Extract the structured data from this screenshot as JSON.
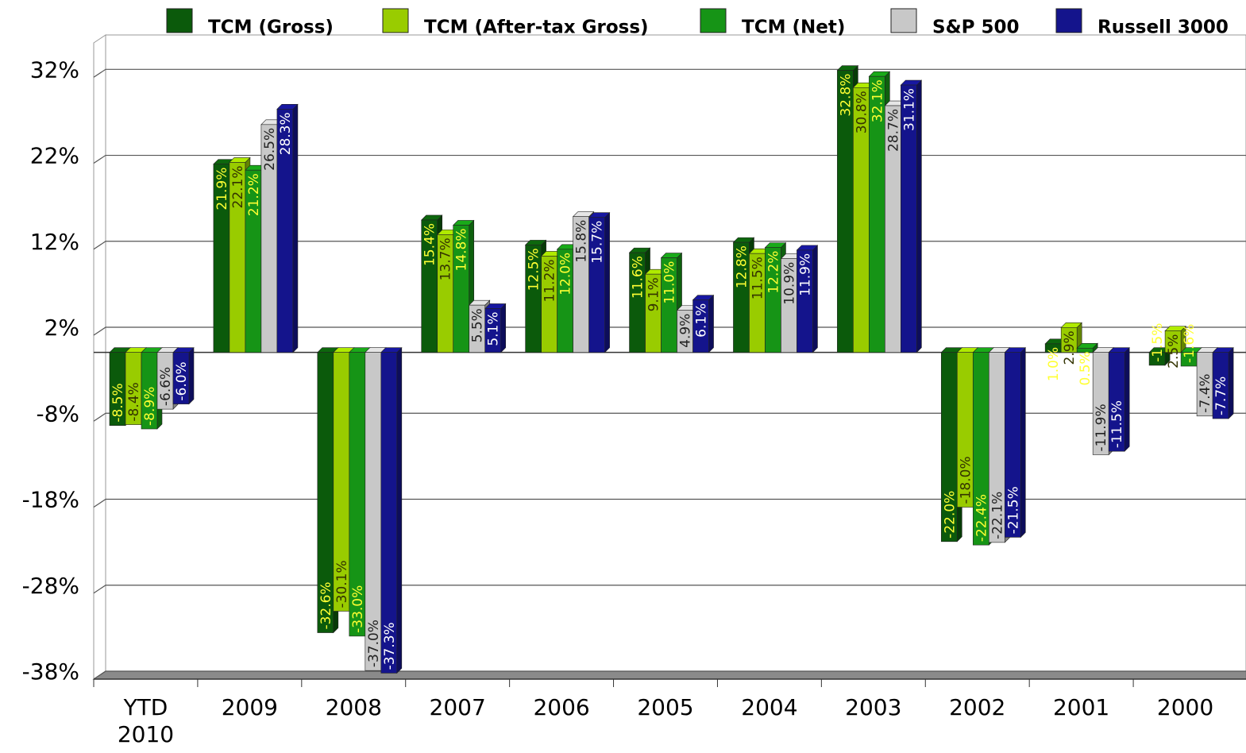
{
  "chart_data": {
    "type": "bar3d",
    "categories": [
      "YTD 2010",
      "2009",
      "2008",
      "2007",
      "2006",
      "2005",
      "2004",
      "2003",
      "2002",
      "2001",
      "2000"
    ],
    "series": [
      {
        "name": "TCM (Gross)",
        "color": "#0b5a0b",
        "label_color": "#ffff33",
        "values": [
          -8.5,
          21.9,
          -32.6,
          15.4,
          12.5,
          11.6,
          12.8,
          32.8,
          -22.0,
          1.0,
          -1.5
        ],
        "value_labels": [
          "-8.5%",
          "21.9%",
          "-32.6%",
          "15.4%",
          "12.5%",
          "11.6%",
          "12.8%",
          "32.8%",
          "-22.0%",
          "1.0%",
          "-1.5%"
        ]
      },
      {
        "name": "TCM (After-tax Gross)",
        "color": "#99cc00",
        "label_color": "#333300",
        "values": [
          -8.4,
          22.1,
          -30.1,
          13.7,
          11.2,
          9.1,
          11.5,
          30.8,
          -18.0,
          2.9,
          2.5
        ],
        "value_labels": [
          "-8.4%",
          "22.1%",
          "-30.1%",
          "13.7%",
          "11.2%",
          "9.1%",
          "11.5%",
          "30.8%",
          "-18.0%",
          "2.9%",
          "2.5%"
        ]
      },
      {
        "name": "TCM (Net)",
        "color": "#169416",
        "label_color": "#ffff33",
        "values": [
          -8.9,
          21.2,
          -33.0,
          14.8,
          12.0,
          11.0,
          12.2,
          32.1,
          -22.4,
          0.5,
          -1.6
        ],
        "value_labels": [
          "-8.9%",
          "21.2%",
          "-33.0%",
          "14.8%",
          "12.0%",
          "11.0%",
          "12.2%",
          "32.1%",
          "-22.4%",
          "0.5%",
          "-1.6%"
        ]
      },
      {
        "name": "S&P 500",
        "color": "#c8c8c8",
        "label_color": "#222222",
        "values": [
          -6.6,
          26.5,
          -37.0,
          5.5,
          15.8,
          4.9,
          10.9,
          28.7,
          -22.1,
          -11.9,
          -7.4
        ],
        "value_labels": [
          "-6.6%",
          "26.5%",
          "-37.0%",
          "5.5%",
          "15.8%",
          "4.9%",
          "10.9%",
          "28.7%",
          "-22.1%",
          "-11.9%",
          "-7.4%"
        ]
      },
      {
        "name": "Russell 3000",
        "color": "#14148c",
        "label_color": "#ffffff",
        "values": [
          -6.0,
          28.3,
          -37.3,
          5.1,
          15.7,
          6.1,
          11.9,
          31.1,
          -21.5,
          -11.5,
          -7.7
        ],
        "value_labels": [
          "-6.0%",
          "28.3%",
          "-37.3%",
          "5.1%",
          "15.7%",
          "6.1%",
          "11.9%",
          "31.1%",
          "-21.5%",
          "-11.5%",
          "-7.7%"
        ]
      }
    ],
    "ylim": [
      -38,
      36
    ],
    "yticks": [
      {
        "value": -38,
        "label": "-38%"
      },
      {
        "value": -28,
        "label": "-28%"
      },
      {
        "value": -18,
        "label": "-18%"
      },
      {
        "value": -8,
        "label": "-8%"
      },
      {
        "value": 2,
        "label": "2%"
      },
      {
        "value": 12,
        "label": "12%"
      },
      {
        "value": 22,
        "label": "22%"
      },
      {
        "value": 32,
        "label": "32%"
      }
    ],
    "grid": true,
    "legend": "top"
  }
}
